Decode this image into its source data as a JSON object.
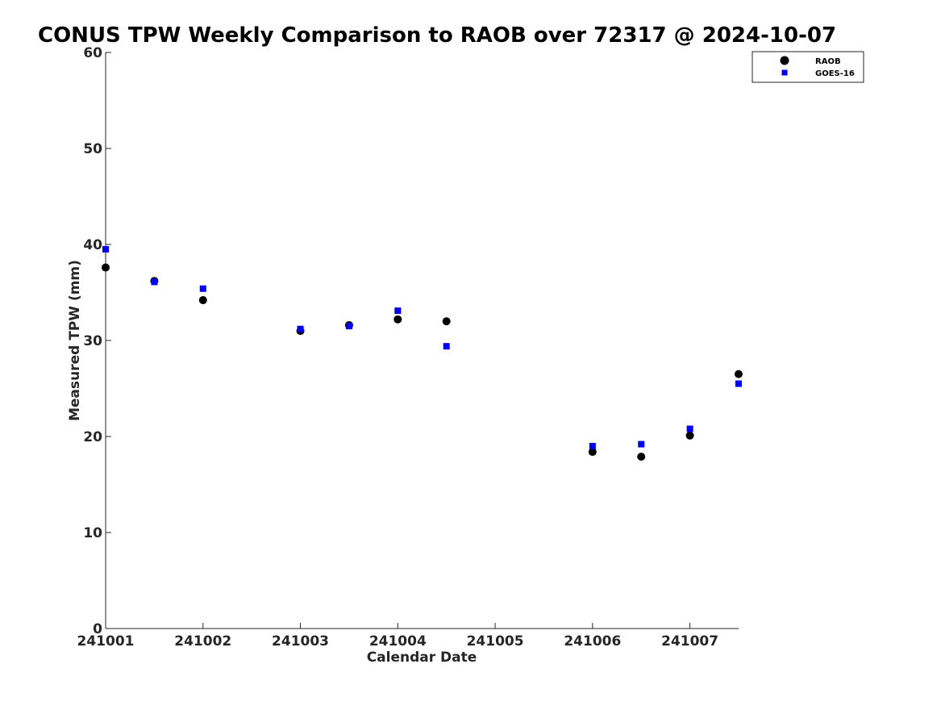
{
  "chart_data": {
    "type": "scatter",
    "title": "CONUS TPW Weekly Comparison to RAOB over 72317 @ 2024-10-07",
    "xlabel": "Calendar Date",
    "ylabel": "Measured TPW (mm)",
    "x_tick_labels": [
      "241001",
      "241002",
      "241003",
      "241004",
      "241005",
      "241006",
      "241007"
    ],
    "x_range": [
      "2024-10-01 00:00",
      "2024-10-07 12:00"
    ],
    "ylim": [
      0,
      60
    ],
    "y_ticks": [
      0,
      10,
      20,
      30,
      40,
      50,
      60
    ],
    "grid": false,
    "legend_position": "top-right",
    "series": [
      {
        "name": "RAOB",
        "marker": "circle",
        "color": "#000000",
        "points": [
          {
            "x": "2024-10-01 00:00",
            "y": 37.6
          },
          {
            "x": "2024-10-01 12:00",
            "y": 36.2
          },
          {
            "x": "2024-10-02 00:00",
            "y": 34.2
          },
          {
            "x": "2024-10-03 00:00",
            "y": 31.0
          },
          {
            "x": "2024-10-03 12:00",
            "y": 31.6
          },
          {
            "x": "2024-10-04 00:00",
            "y": 32.2
          },
          {
            "x": "2024-10-04 12:00",
            "y": 32.0
          },
          {
            "x": "2024-10-06 00:00",
            "y": 18.4
          },
          {
            "x": "2024-10-06 12:00",
            "y": 17.9
          },
          {
            "x": "2024-10-07 00:00",
            "y": 20.1
          },
          {
            "x": "2024-10-07 12:00",
            "y": 26.5
          }
        ]
      },
      {
        "name": "GOES-16",
        "marker": "square",
        "color": "#0000ff",
        "points": [
          {
            "x": "2024-10-01 00:00",
            "y": 39.5
          },
          {
            "x": "2024-10-01 12:00",
            "y": 36.1
          },
          {
            "x": "2024-10-02 00:00",
            "y": 35.4
          },
          {
            "x": "2024-10-03 00:00",
            "y": 31.2
          },
          {
            "x": "2024-10-03 12:00",
            "y": 31.5
          },
          {
            "x": "2024-10-04 00:00",
            "y": 33.1
          },
          {
            "x": "2024-10-04 12:00",
            "y": 29.4
          },
          {
            "x": "2024-10-06 00:00",
            "y": 19.0
          },
          {
            "x": "2024-10-06 12:00",
            "y": 19.2
          },
          {
            "x": "2024-10-07 00:00",
            "y": 20.8
          },
          {
            "x": "2024-10-07 12:00",
            "y": 25.5
          }
        ]
      }
    ]
  }
}
